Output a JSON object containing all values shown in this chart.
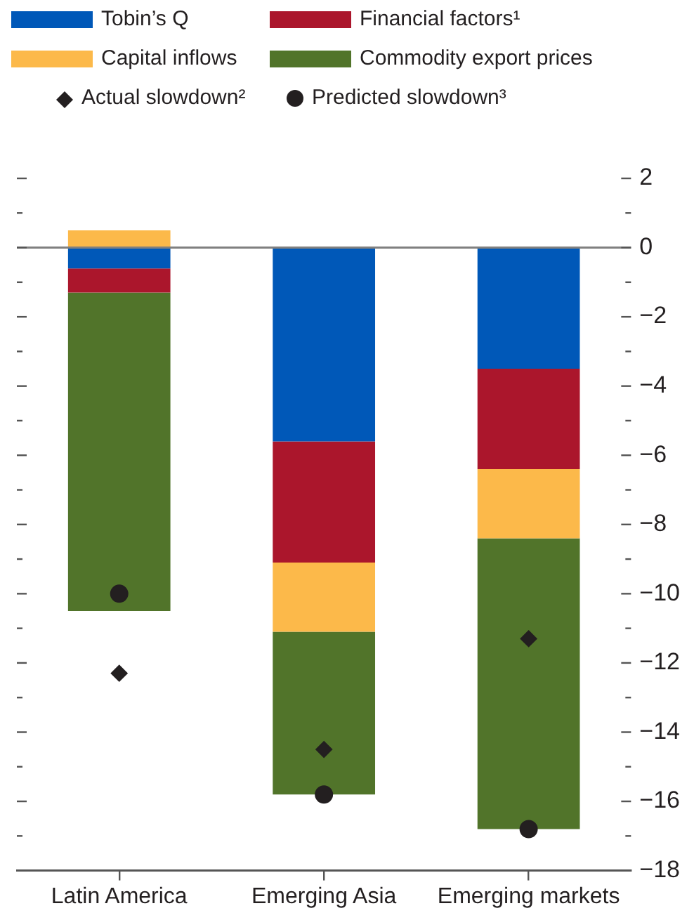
{
  "chart_data": {
    "type": "bar",
    "stacked": true,
    "categories": [
      "Latin America",
      "Emerging Asia",
      "Emerging markets"
    ],
    "series": [
      {
        "name": "Tobin’s Q",
        "color": "#0058b8",
        "values": [
          -0.6,
          -5.6,
          -3.5
        ]
      },
      {
        "name": "Financial factors¹",
        "color": "#ab162c",
        "values": [
          -0.7,
          -3.5,
          -2.9
        ]
      },
      {
        "name": "Capital inflows",
        "color": "#fcb94a",
        "values": [
          0.5,
          -2.0,
          -2.0
        ]
      },
      {
        "name": "Commodity export prices",
        "color": "#51742a",
        "values": [
          -9.2,
          -4.7,
          -8.4
        ]
      },
      {
        "name": "Actual slowdown²",
        "type": "scatter",
        "marker": "diamond",
        "color": "#231f20",
        "x": [
          "Latin America",
          "Emerging Asia",
          "Emerging markets"
        ],
        "values": [
          -12.3,
          -14.5,
          -11.3
        ]
      },
      {
        "name": "Predicted slowdown³",
        "type": "scatter",
        "marker": "circle",
        "color": "#231f20",
        "x": [
          "Latin America",
          "Emerging Asia",
          "Emerging markets"
        ],
        "values": [
          -10.0,
          -15.8,
          -16.8
        ]
      }
    ],
    "ylim": [
      -18,
      2
    ],
    "yticks": [
      2,
      {
        "value": 1,
        "label": null
      },
      0,
      {
        "value": -1,
        "label": null
      },
      -2,
      {
        "value": -3,
        "label": null
      },
      -4,
      {
        "value": -5,
        "label": null
      },
      -6,
      {
        "value": -7,
        "label": null
      },
      -8,
      {
        "value": -9,
        "label": null
      },
      -10,
      {
        "value": -11,
        "label": null
      },
      -12,
      {
        "value": -13,
        "label": null
      },
      -14,
      {
        "value": -15,
        "label": null
      },
      -16,
      {
        "value": -17,
        "label": null
      },
      -18
    ],
    "ref_lines": [
      {
        "axis": "y",
        "value": 0,
        "color": "#808080"
      }
    ],
    "grid": false,
    "legend": "top"
  }
}
